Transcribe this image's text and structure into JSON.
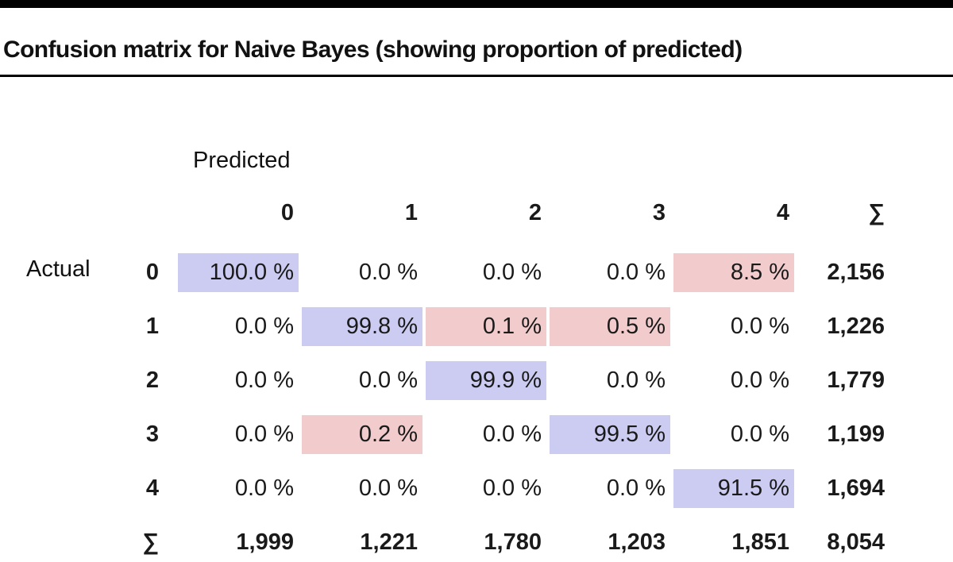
{
  "chart_data": {
    "type": "heatmap",
    "title": "Confusion matrix for Naive Bayes (showing proportion of predicted)",
    "xlabel": "Predicted",
    "ylabel": "Actual",
    "categories": [
      "0",
      "1",
      "2",
      "3",
      "4"
    ],
    "sum_symbol": "∑",
    "matrix": [
      [
        "100.0 %",
        "0.0 %",
        "0.0 %",
        "0.0 %",
        "8.5 %"
      ],
      [
        "0.0 %",
        "99.8 %",
        "0.1 %",
        "0.5 %",
        "0.0 %"
      ],
      [
        "0.0 %",
        "0.0 %",
        "99.9 %",
        "0.0 %",
        "0.0 %"
      ],
      [
        "0.0 %",
        "0.2 %",
        "0.0 %",
        "99.5 %",
        "0.0 %"
      ],
      [
        "0.0 %",
        "0.0 %",
        "0.0 %",
        "0.0 %",
        "91.5 %"
      ]
    ],
    "values": [
      [
        100.0,
        0.0,
        0.0,
        0.0,
        8.5
      ],
      [
        0.0,
        99.8,
        0.1,
        0.5,
        0.0
      ],
      [
        0.0,
        0.0,
        99.9,
        0.0,
        0.0
      ],
      [
        0.0,
        0.2,
        0.0,
        99.5,
        0.0
      ],
      [
        0.0,
        0.0,
        0.0,
        0.0,
        91.5
      ]
    ],
    "row_totals": [
      "2,156",
      "1,226",
      "1,779",
      "1,199",
      "1,694"
    ],
    "col_totals": [
      "1,999",
      "1,221",
      "1,780",
      "1,203",
      "1,851"
    ],
    "grand_total": "8,054",
    "colors": {
      "correct": "#ccccf3",
      "error": "#f2cccc"
    }
  }
}
